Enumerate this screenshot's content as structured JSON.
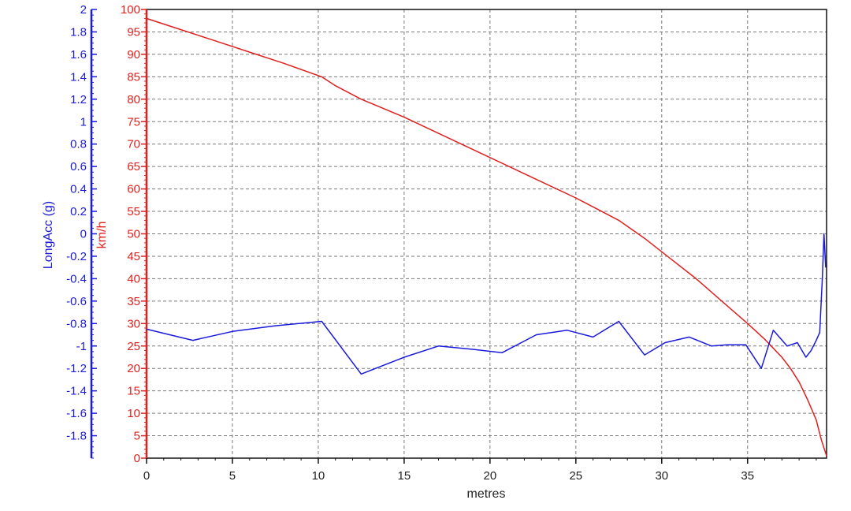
{
  "chart_data": {
    "type": "line",
    "title": "",
    "xlabel": "metres",
    "xlim": [
      0,
      39.6
    ],
    "x_ticks": [
      "0",
      "5",
      "10",
      "15",
      "20",
      "25",
      "30",
      "35"
    ],
    "grid": true,
    "y_left_outer": {
      "label": "LongAcc (g)",
      "color": "#1a1adb",
      "ylim": [
        -2,
        2
      ],
      "ticks": [
        "2",
        "1.8",
        "1.6",
        "1.4",
        "1.2",
        "1",
        "0.8",
        "0.6",
        "0.4",
        "0.2",
        "0",
        "-0.2",
        "-0.4",
        "-0.6",
        "-0.8",
        "-1",
        "-1.2",
        "-1.4",
        "-1.6",
        "-1.8"
      ]
    },
    "y_left_inner": {
      "label": "km/h",
      "color": "#e0201e",
      "ylim": [
        0,
        100
      ],
      "ticks": [
        "100",
        "95",
        "90",
        "85",
        "80",
        "75",
        "70",
        "65",
        "60",
        "55",
        "50",
        "45",
        "40",
        "35",
        "30",
        "25",
        "20",
        "15",
        "10",
        "5",
        "0"
      ]
    },
    "series": [
      {
        "axis": "km/h",
        "color": "#e0201e",
        "x": [
          0,
          2,
          4,
          6,
          8,
          10.2,
          11,
          12.5,
          15,
          17.5,
          20,
          22.5,
          25,
          27.5,
          29,
          30.5,
          32,
          33.5,
          35,
          36,
          37,
          37.5,
          38,
          38.5,
          39,
          39.3,
          39.6
        ],
        "y": [
          98,
          95.5,
          93,
          90.5,
          88,
          85,
          83,
          80,
          76,
          71.5,
          67,
          62.5,
          58,
          53,
          49,
          44.5,
          40,
          35,
          30,
          26.5,
          22.5,
          20,
          17,
          13,
          8.5,
          4,
          0.5
        ]
      },
      {
        "axis": "LongAcc (g)",
        "color": "#1a1adb",
        "x": [
          0,
          2.7,
          5,
          7.5,
          10.2,
          12.5,
          15,
          17,
          19,
          20.7,
          22.7,
          24.5,
          26,
          27.5,
          29,
          30.2,
          31.6,
          32.9,
          33.8,
          34.9,
          35.8,
          36.5,
          37.3,
          37.9,
          38.4,
          38.7,
          39,
          39.2,
          39.35,
          39.45,
          39.55
        ],
        "y": [
          -0.85,
          -0.95,
          -0.87,
          -0.82,
          -0.78,
          -1.25,
          -1.1,
          -1.0,
          -1.03,
          -1.06,
          -0.9,
          -0.86,
          -0.92,
          -0.78,
          -1.08,
          -0.97,
          -0.92,
          -1.0,
          -0.99,
          -0.99,
          -1.2,
          -0.86,
          -1.0,
          -0.97,
          -1.1,
          -1.04,
          -0.95,
          -0.88,
          -0.4,
          0.0,
          -0.3
        ]
      }
    ]
  }
}
